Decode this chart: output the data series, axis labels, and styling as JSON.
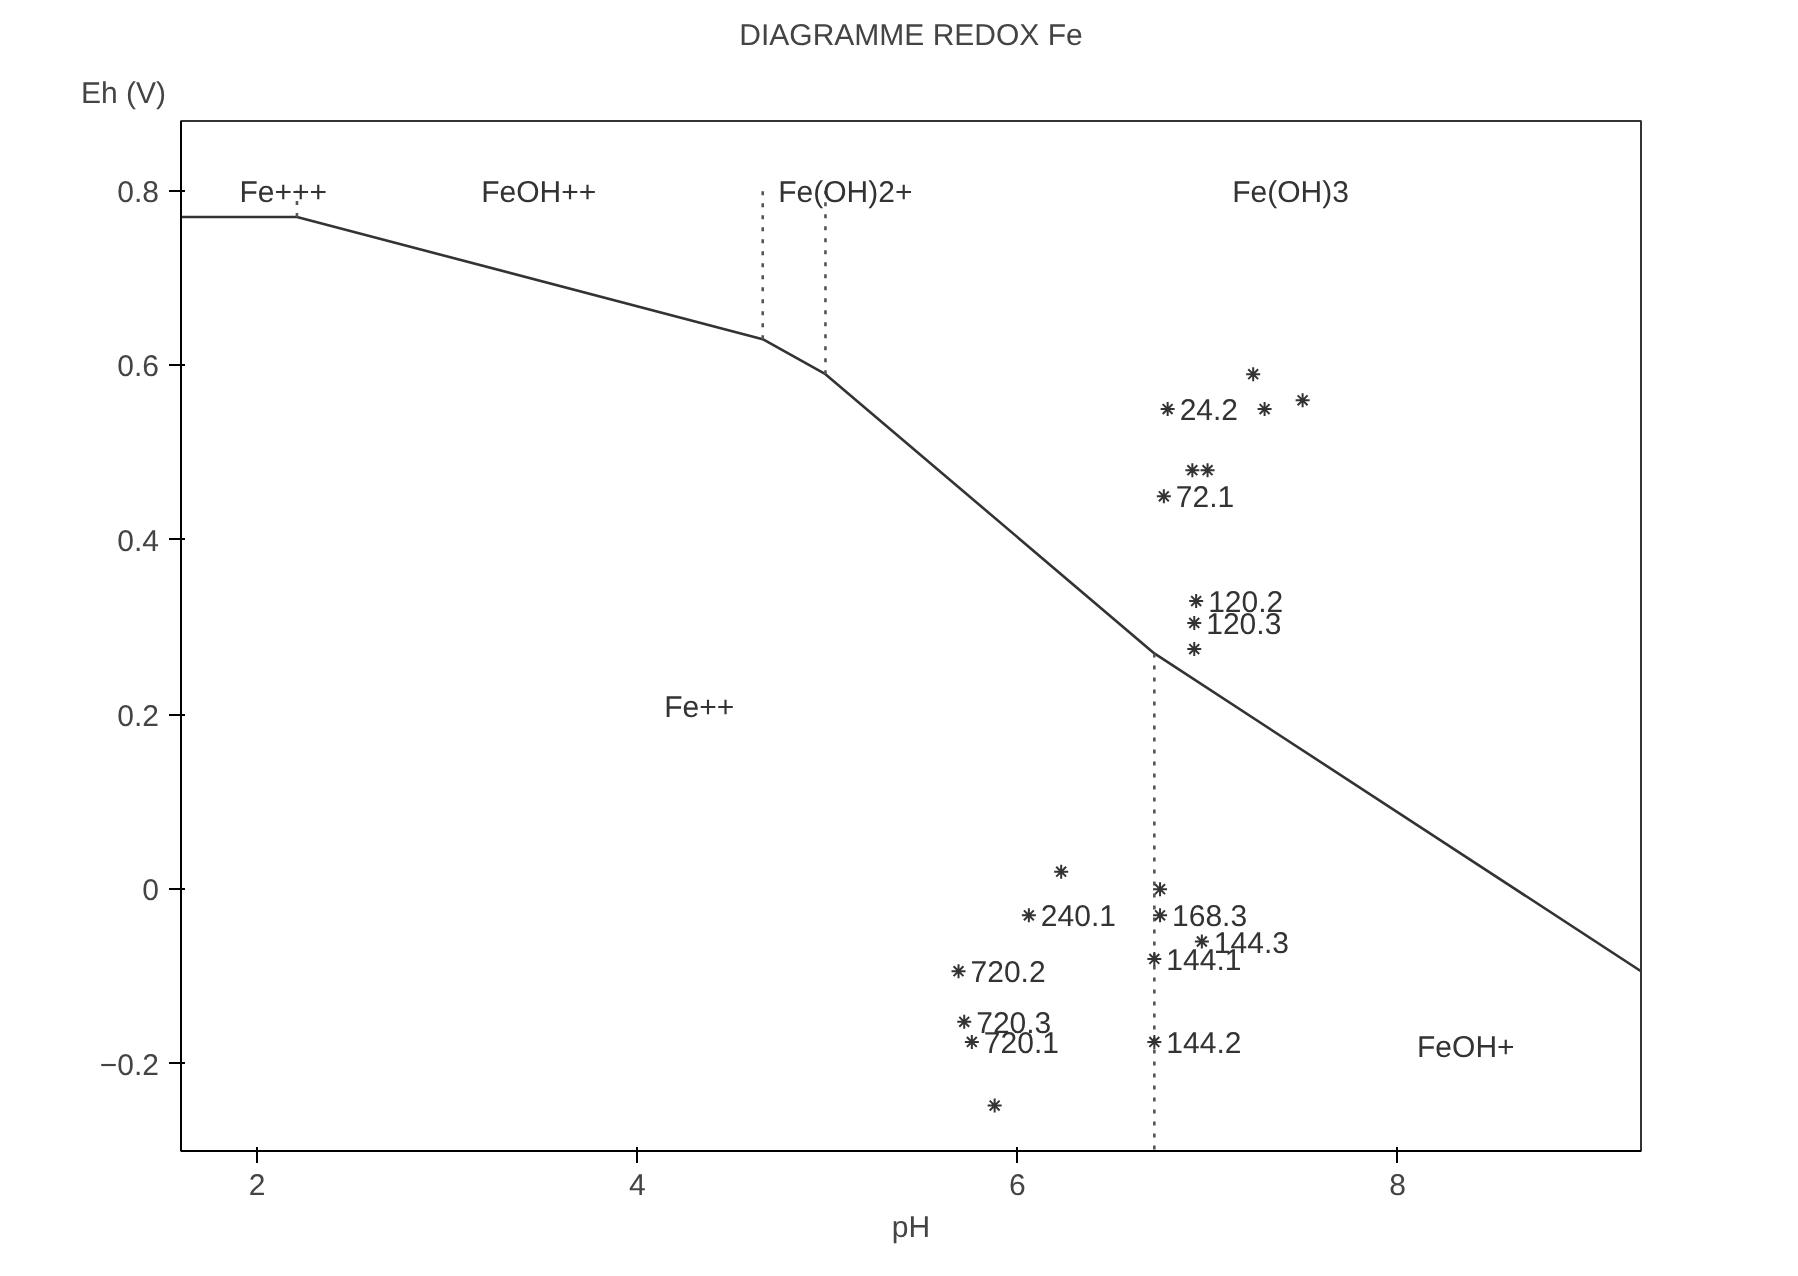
{
  "chart_data": {
    "type": "scatter",
    "title": "DIAGRAMME REDOX Fe",
    "xlabel": "pH",
    "ylabel": "Eh (V)",
    "xlim": [
      1.6,
      9.28
    ],
    "ylim": [
      -0.3,
      0.88
    ],
    "xticks": [
      2,
      4,
      6,
      8
    ],
    "yticks": [
      -0.2,
      0,
      0.2,
      0.4,
      0.6,
      0.8
    ],
    "grid": false,
    "series": [
      {
        "type": "line",
        "color": "#333333",
        "line_style": "solid",
        "x": [
          1.6,
          2.21,
          4.66,
          4.99,
          6.72,
          9.28
        ],
        "values": [
          0.77,
          0.77,
          0.63,
          0.59,
          0.27,
          -0.094
        ]
      },
      {
        "type": "line",
        "color": "#555555",
        "line_style": "dotted",
        "x": [
          2.21,
          2.21
        ],
        "values": [
          0.77,
          0.8
        ]
      },
      {
        "type": "line",
        "color": "#555555",
        "line_style": "dotted",
        "x": [
          4.66,
          4.66
        ],
        "values": [
          0.63,
          0.8
        ]
      },
      {
        "type": "line",
        "color": "#555555",
        "line_style": "dotted",
        "x": [
          4.99,
          4.99
        ],
        "values": [
          0.59,
          0.8
        ]
      },
      {
        "type": "line",
        "color": "#555555",
        "line_style": "dotted",
        "x": [
          6.72,
          6.72
        ],
        "values": [
          0.27,
          -0.3
        ]
      },
      {
        "color": "#333333",
        "marker": "cross",
        "x": [
          6.79,
          7.24,
          7.3,
          7.5,
          6.92,
          7.0,
          6.77,
          6.94,
          6.93,
          6.93,
          6.23,
          6.06,
          6.75,
          6.72,
          6.97,
          6.75,
          5.69,
          5.72,
          5.76,
          6.72,
          5.88
        ],
        "values": [
          0.55,
          0.59,
          0.55,
          0.56,
          0.48,
          0.48,
          0.45,
          0.33,
          0.305,
          0.275,
          0.02,
          -0.03,
          -0.03,
          -0.08,
          -0.06,
          0.0,
          -0.094,
          -0.152,
          -0.175,
          -0.175,
          -0.248
        ]
      }
    ],
    "annotations": [
      "Fe+++",
      "FeOH++",
      "Fe(OH)2+",
      "Fe(OH)3",
      "Fe++",
      "FeOH+",
      {
        "text": "24.2",
        "x": 6.79,
        "y": 0.55
      },
      {
        "text": "72.1",
        "x": 6.77,
        "y": 0.45
      },
      {
        "text": "120.2",
        "x": 6.94,
        "y": 0.33
      },
      {
        "text": "120.3",
        "x": 6.93,
        "y": 0.305
      },
      {
        "text": "240.1",
        "x": 6.06,
        "y": -0.03
      },
      {
        "text": "168.3",
        "x": 6.75,
        "y": -0.03
      },
      {
        "text": "144.1",
        "x": 6.72,
        "y": -0.08
      },
      {
        "text": "144.3",
        "x": 6.97,
        "y": -0.06
      },
      {
        "text": "720.2",
        "x": 5.69,
        "y": -0.094
      },
      {
        "text": "720.3",
        "x": 5.72,
        "y": -0.152
      },
      {
        "text": "720.1",
        "x": 5.76,
        "y": -0.175
      },
      {
        "text": "144.2",
        "x": 6.72,
        "y": -0.175
      }
    ]
  }
}
